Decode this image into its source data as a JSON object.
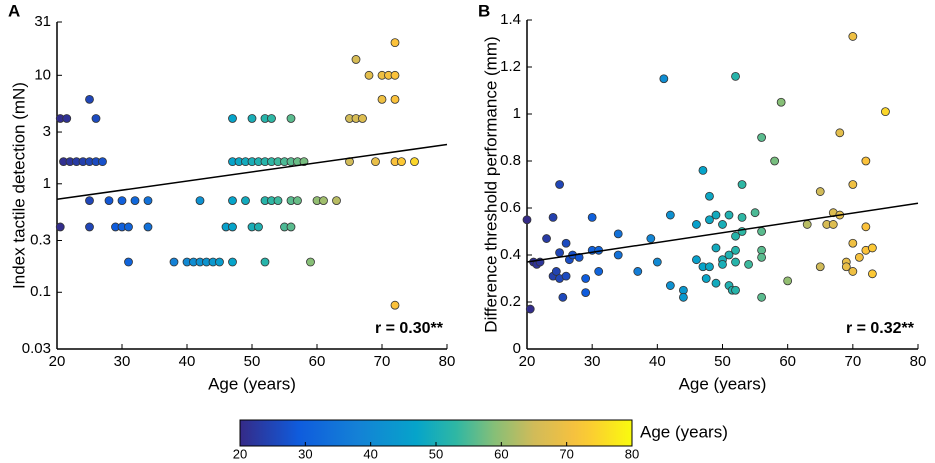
{
  "chart_data": [
    {
      "type": "scatter",
      "panel": "A",
      "x_label": "Age (years)",
      "y_label": "Index tactile detection (mN)",
      "annotation": "r = 0.30**",
      "xlim": [
        20,
        80
      ],
      "xticks": [
        20,
        30,
        40,
        50,
        60,
        70,
        80
      ],
      "ylim": [
        0.03,
        31
      ],
      "yticks": [
        0.03,
        0.1,
        0.3,
        1,
        3,
        10,
        31
      ],
      "log_y": true,
      "colormap": "parula",
      "color_by": "x",
      "x": [
        20.5,
        21.5,
        20.5,
        25,
        26,
        21,
        22,
        23,
        24,
        25,
        26,
        27,
        25,
        28,
        30,
        32,
        34,
        25,
        29,
        30,
        31,
        34,
        31,
        38,
        40,
        41,
        42,
        43,
        44,
        45,
        47,
        42,
        47,
        49,
        46,
        47,
        52,
        47,
        50,
        52,
        53,
        56,
        47,
        48,
        49,
        50,
        51,
        52,
        53,
        54,
        55,
        56,
        57,
        52,
        53,
        54,
        56,
        57,
        60,
        61,
        63,
        50,
        51,
        55,
        56,
        59,
        65,
        66,
        67,
        66,
        68,
        70,
        71,
        72,
        70,
        72,
        72,
        65,
        69,
        72,
        73,
        75,
        72,
        58
      ],
      "values": [
        4,
        4,
        0.4,
        6,
        4,
        1.6,
        1.6,
        1.6,
        1.6,
        1.6,
        1.6,
        1.6,
        0.7,
        0.7,
        0.7,
        0.7,
        0.7,
        0.4,
        0.4,
        0.4,
        0.4,
        0.4,
        0.19,
        0.19,
        0.19,
        0.19,
        0.19,
        0.19,
        0.19,
        0.19,
        0.19,
        0.7,
        0.7,
        0.7,
        0.4,
        0.4,
        0.19,
        4,
        4,
        4,
        4,
        4,
        1.6,
        1.6,
        1.6,
        1.6,
        1.6,
        1.6,
        1.6,
        1.6,
        1.6,
        1.6,
        1.6,
        0.7,
        0.7,
        0.7,
        0.7,
        0.7,
        0.7,
        0.7,
        0.7,
        0.4,
        0.4,
        0.4,
        0.4,
        0.19,
        4,
        4,
        4,
        14,
        10,
        10,
        10,
        10,
        6,
        6,
        20,
        1.6,
        1.6,
        1.6,
        1.6,
        1.6,
        0.076,
        1.6
      ],
      "fit": {
        "x": [
          20,
          80
        ],
        "values": [
          0.72,
          2.3
        ]
      }
    },
    {
      "type": "scatter",
      "panel": "B",
      "x_label": "Age (years)",
      "y_label": "Difference threshold performance (mm)",
      "annotation": "r = 0.32**",
      "xlim": [
        20,
        80
      ],
      "xticks": [
        20,
        30,
        40,
        50,
        60,
        70,
        80
      ],
      "ylim": [
        0,
        1.4
      ],
      "yticks": [
        0,
        0.2,
        0.4,
        0.6,
        0.8,
        1,
        1.2,
        1.4
      ],
      "log_y": false,
      "colormap": "parula",
      "color_by": "x",
      "x": [
        20,
        20.5,
        21,
        21.5,
        22,
        23,
        24,
        24,
        24.5,
        25,
        25,
        25,
        25.5,
        26,
        26,
        26.5,
        27,
        28,
        29,
        29,
        30,
        30,
        31,
        31,
        34,
        34,
        37,
        39,
        40,
        41,
        42,
        42,
        44,
        44,
        46,
        46,
        47,
        47,
        47.5,
        48,
        48,
        48,
        49,
        49,
        49,
        50,
        50,
        50,
        51,
        51,
        51,
        51.5,
        52,
        52,
        52,
        52,
        52,
        53,
        53,
        53,
        54,
        55,
        56,
        56,
        56,
        56,
        56,
        58,
        59,
        60,
        63,
        65,
        65,
        66,
        67,
        67,
        68,
        68,
        69,
        69,
        70,
        70,
        70,
        70,
        71,
        72,
        72,
        72,
        73,
        73,
        75
      ],
      "values": [
        0.55,
        0.17,
        0.37,
        0.36,
        0.37,
        0.47,
        0.56,
        0.31,
        0.33,
        0.7,
        0.41,
        0.3,
        0.22,
        0.31,
        0.45,
        0.38,
        0.4,
        0.39,
        0.3,
        0.24,
        0.56,
        0.42,
        0.42,
        0.33,
        0.49,
        0.4,
        0.33,
        0.47,
        0.37,
        1.15,
        0.57,
        0.27,
        0.25,
        0.22,
        0.53,
        0.38,
        0.76,
        0.35,
        0.3,
        0.65,
        0.55,
        0.35,
        0.57,
        0.43,
        0.28,
        0.53,
        0.38,
        0.36,
        0.57,
        0.4,
        0.27,
        0.25,
        1.16,
        0.48,
        0.42,
        0.37,
        0.25,
        0.7,
        0.56,
        0.5,
        0.36,
        0.58,
        0.9,
        0.5,
        0.42,
        0.39,
        0.22,
        0.8,
        1.05,
        0.29,
        0.53,
        0.67,
        0.35,
        0.53,
        0.58,
        0.53,
        0.92,
        0.57,
        0.37,
        0.35,
        1.33,
        0.7,
        0.45,
        0.33,
        0.39,
        0.8,
        0.52,
        0.42,
        0.43,
        0.32,
        1.01
      ],
      "fit": {
        "x": [
          20,
          80
        ],
        "values": [
          0.37,
          0.62
        ]
      }
    }
  ],
  "colorbar": {
    "label": "Age (years)",
    "lim": [
      20,
      80
    ],
    "ticks": [
      20,
      30,
      40,
      50,
      60,
      70,
      80
    ],
    "colormap": "parula"
  }
}
